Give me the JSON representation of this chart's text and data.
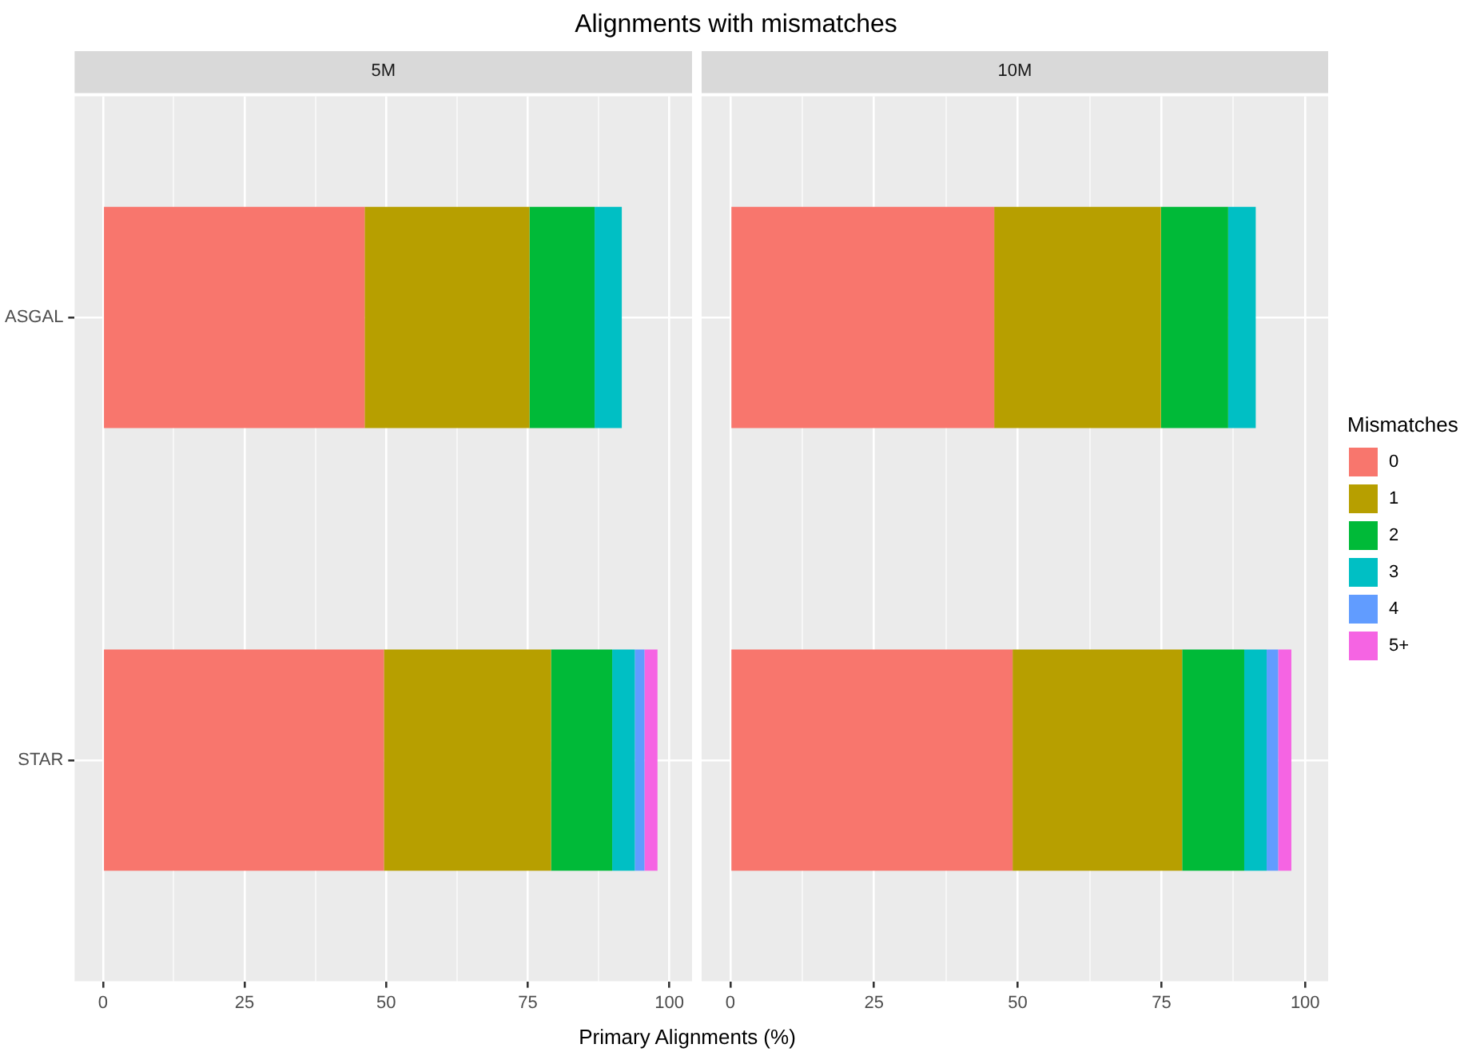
{
  "chart_data": [
    {
      "type": "bar",
      "orientation": "horizontal",
      "stacked": true,
      "title": "Alignments with mismatches",
      "subtitle": "5M",
      "xlabel": "Primary Alignments (%)",
      "categories": [
        "ASGAL",
        "STAR"
      ],
      "series": [
        {
          "color": "#f8766d",
          "values": [
            46.2,
            49.6
          ]
        },
        {
          "color": "#b79f00",
          "values": [
            29.1,
            29.5
          ]
        },
        {
          "color": "#00ba38",
          "values": [
            11.5,
            10.8
          ]
        },
        {
          "color": "#00bfc4",
          "values": [
            4.8,
            4.0
          ]
        },
        {
          "color": "#619cff",
          "values": [
            null,
            1.7
          ]
        },
        {
          "color": "#f564e3",
          "values": [
            null,
            2.3
          ]
        }
      ],
      "xlim": [
        -5,
        104
      ],
      "xticks": [
        0,
        {
          "value": 12.5,
          "label": null
        },
        25,
        {
          "value": 37.5,
          "label": null
        },
        50,
        {
          "value": 62.5,
          "label": null
        },
        75,
        {
          "value": 87.5,
          "label": null
        },
        100
      ],
      "grid": true,
      "legend": false
    },
    {
      "type": "bar",
      "orientation": "horizontal",
      "stacked": true,
      "subtitle": "10M",
      "legend_title": "Mismatches",
      "categories": [
        null,
        null
      ],
      "series": [
        {
          "name": "0",
          "color": "#f8766d",
          "values": [
            45.9,
            49.1
          ]
        },
        {
          "name": "1",
          "color": "#b79f00",
          "values": [
            29.0,
            29.5
          ]
        },
        {
          "name": "2",
          "color": "#00ba38",
          "values": [
            11.7,
            10.8
          ]
        },
        {
          "name": "3",
          "color": "#00bfc4",
          "values": [
            4.8,
            3.9
          ]
        },
        {
          "name": "4",
          "color": "#619cff",
          "values": [
            null,
            2.0
          ]
        },
        {
          "name": "5+",
          "color": "#f564e3",
          "values": [
            null,
            2.3
          ]
        }
      ],
      "xlim": [
        -5,
        104
      ],
      "xticks": [
        0,
        {
          "value": 12.5,
          "label": null
        },
        25,
        {
          "value": 37.5,
          "label": null
        },
        50,
        {
          "value": 62.5,
          "label": null
        },
        75,
        {
          "value": 87.5,
          "label": null
        },
        100
      ],
      "grid": true,
      "legend": "right",
      "tick_labels": "x"
    }
  ]
}
